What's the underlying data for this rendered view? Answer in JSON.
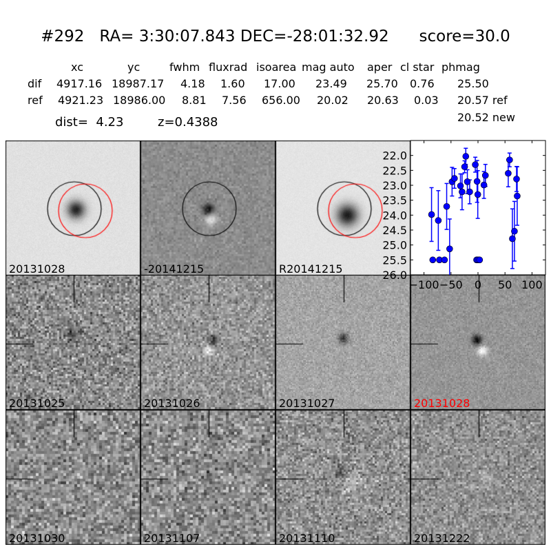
{
  "title": "#292   RA= 3:30:07.843 DEC=-28:01:32.92      score=30.0",
  "table": {
    "headers": [
      "xc",
      "yc",
      "fwhm",
      "fluxrad",
      "isoarea",
      "mag auto",
      "aper",
      "cl star",
      "phmag"
    ],
    "rows": [
      {
        "label": "dif",
        "values": [
          "4917.16",
          "18987.17",
          "4.18",
          "1.60",
          "17.00",
          "23.49",
          "25.70",
          "0.76",
          "25.50"
        ]
      },
      {
        "label": "ref",
        "values": [
          "4921.23",
          "18986.00",
          "8.81",
          "7.56",
          "656.00",
          "20.02",
          "20.63",
          "0.03",
          "20.57 ref"
        ]
      }
    ],
    "extra_phmag": "20.52 new",
    "dist": "dist=  4.23",
    "z": "z=0.4388"
  },
  "stamps": [
    {
      "label": "20131028",
      "color": "#000000"
    },
    {
      "label": "-20141215",
      "color": "#000000"
    },
    {
      "label": "R20141215",
      "color": "#000000"
    },
    {
      "label": "20131025",
      "color": "#000000"
    },
    {
      "label": "20131026",
      "color": "#000000"
    },
    {
      "label": "20131027",
      "color": "#000000"
    },
    {
      "label": "20131028",
      "color": "#ff0000"
    },
    {
      "label": "20131030",
      "color": "#000000"
    },
    {
      "label": "20131107",
      "color": "#000000"
    },
    {
      "label": "20131110",
      "color": "#000000"
    },
    {
      "label": "20131222",
      "color": "#000000"
    }
  ],
  "chart_data": {
    "type": "scatter",
    "xlim": [
      -125,
      125
    ],
    "ylim": [
      26.0,
      21.5
    ],
    "y_inverted": true,
    "xticks": [
      "-100",
      "-50",
      "0",
      "50",
      "100"
    ],
    "yticks": [
      "22.0",
      "22.5",
      "23.0",
      "23.5",
      "24.0",
      "24.5",
      "25.0",
      "25.5",
      "26.0"
    ],
    "color": "#0000ff",
    "points": [
      {
        "x": -86,
        "y": 23.98,
        "err": 0.9
      },
      {
        "x": -73.5,
        "y": 24.18,
        "err": 1.0
      },
      {
        "x": -58,
        "y": 23.71,
        "err": 0.77
      },
      {
        "x": -52.5,
        "y": 25.13,
        "err": 1.0
      },
      {
        "x": -48,
        "y": 22.88,
        "err": 0.48
      },
      {
        "x": -43.6,
        "y": 22.77,
        "err": 0.33
      },
      {
        "x": -32.5,
        "y": 23.02,
        "err": 0.4
      },
      {
        "x": -29.5,
        "y": 23.22,
        "err": 0.6
      },
      {
        "x": -24.8,
        "y": 22.38,
        "err": 0.2
      },
      {
        "x": -22.6,
        "y": 22.03,
        "err": 0.27
      },
      {
        "x": -19.7,
        "y": 22.88,
        "err": 0.4
      },
      {
        "x": -15.4,
        "y": 23.22,
        "err": 0.4
      },
      {
        "x": -5,
        "y": 22.31,
        "err": 0.25
      },
      {
        "x": -1.7,
        "y": 22.87,
        "err": 0.7
      },
      {
        "x": -0.4,
        "y": 23.31,
        "err": 0.8
      },
      {
        "x": 11,
        "y": 22.99,
        "err": 0.45
      },
      {
        "x": 13.7,
        "y": 22.67,
        "err": 0.37
      },
      {
        "x": 56,
        "y": 22.6,
        "err": 0.45
      },
      {
        "x": 58.5,
        "y": 22.15,
        "err": 0.23
      },
      {
        "x": 63.7,
        "y": 24.79,
        "err": 1.0
      },
      {
        "x": 67.5,
        "y": 24.54,
        "err": 1.0
      },
      {
        "x": 71.4,
        "y": 22.79,
        "err": 0.42
      },
      {
        "x": 72.6,
        "y": 23.36,
        "err": 0.98
      }
    ],
    "upper_limits": [
      {
        "x": -83.8,
        "y": 25.5
      },
      {
        "x": -71.4,
        "y": 25.5
      },
      {
        "x": -62,
        "y": 25.5
      },
      {
        "x": -2.6,
        "y": 25.5
      },
      {
        "x": 0,
        "y": 25.5
      },
      {
        "x": 3,
        "y": 25.5
      }
    ]
  }
}
